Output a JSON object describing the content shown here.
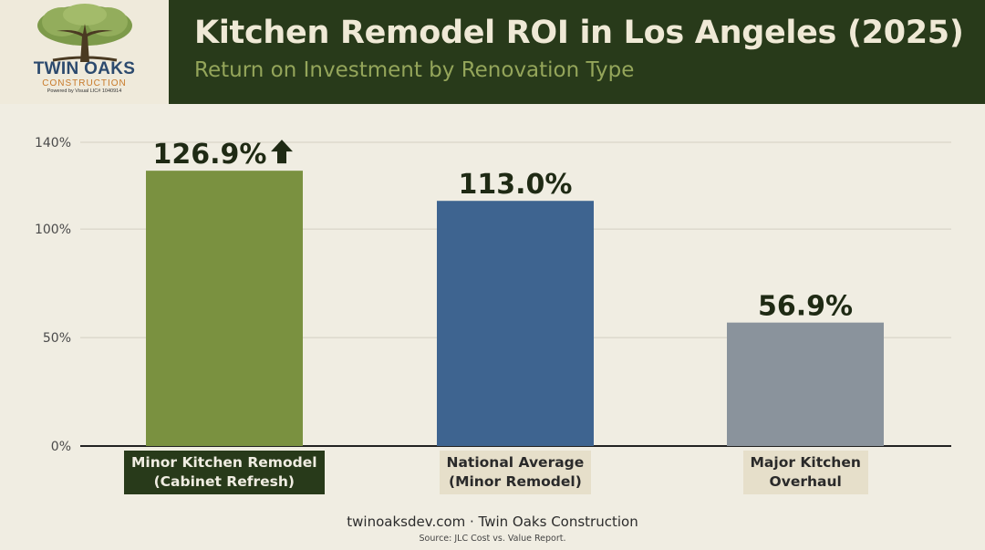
{
  "header": {
    "title": "Kitchen Remodel ROI in Los Angeles (2025)",
    "subtitle": "Return on Investment by Renovation Type"
  },
  "logo": {
    "name": "TWIN OAKS",
    "sub": "CONSTRUCTION",
    "powered": "Powered by Visual LIC# 1040914",
    "icon": "oak-tree-icon"
  },
  "chart_data": {
    "type": "bar",
    "categories": [
      "Minor Kitchen Remodel\n(Cabinet Refresh)",
      "National Average\n(Minor Remodel)",
      "Major Kitchen\nOverhaul"
    ],
    "values": [
      126.9,
      113.0,
      56.9
    ],
    "data_labels": [
      "126.9%",
      "113.0%",
      "56.9%"
    ],
    "y_ticks": [
      {
        "value": 0,
        "label": "0%"
      },
      {
        "value": 50,
        "label": "50%"
      },
      {
        "value": 100,
        "label": "100%"
      },
      {
        "value": 140,
        "label": "140%"
      }
    ],
    "ylim": [
      0,
      140
    ],
    "grid": true,
    "highlight_icon": "up-arrow-icon",
    "colors": [
      "#7a9140",
      "#3e6490",
      "#8a939c"
    ],
    "label_styles": [
      {
        "bg": "#283a1a",
        "fg": "#f0ede2"
      },
      {
        "bg": "#e6dfca",
        "fg": "#2a2a2a"
      },
      {
        "bg": "#e6dfca",
        "fg": "#2a2a2a"
      }
    ]
  },
  "footer": {
    "site": "twinoaksdev.com · Twin Oaks Construction",
    "source": "Source: JLC Cost vs. Value Report."
  }
}
